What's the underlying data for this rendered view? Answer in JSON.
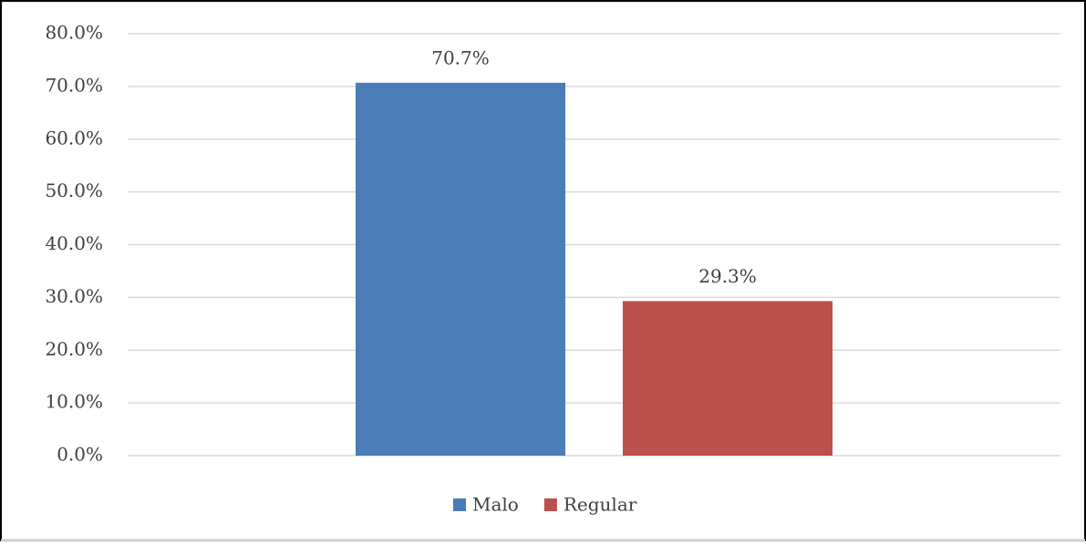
{
  "chart_data": {
    "type": "bar",
    "categories": [
      null
    ],
    "series": [
      {
        "name": "Malo",
        "color": "#4a7db8",
        "values": [
          70.7
        ],
        "value_labels": [
          "70.7%"
        ]
      },
      {
        "name": "Regular",
        "color": "#bc504c",
        "values": [
          29.3
        ],
        "value_labels": [
          "29.3%"
        ]
      }
    ],
    "ylim": [
      0,
      80
    ],
    "yticks": [
      {
        "value": 0,
        "label": "0.0%"
      },
      {
        "value": 10,
        "label": "10.0%"
      },
      {
        "value": 20,
        "label": "20.0%"
      },
      {
        "value": 30,
        "label": "30.0%"
      },
      {
        "value": 40,
        "label": "40.0%"
      },
      {
        "value": 50,
        "label": "50.0%"
      },
      {
        "value": 60,
        "label": "60.0%"
      },
      {
        "value": 70,
        "label": "70.0%"
      },
      {
        "value": 80,
        "label": "80.0%"
      }
    ],
    "grid": true,
    "legend": "bottom"
  }
}
